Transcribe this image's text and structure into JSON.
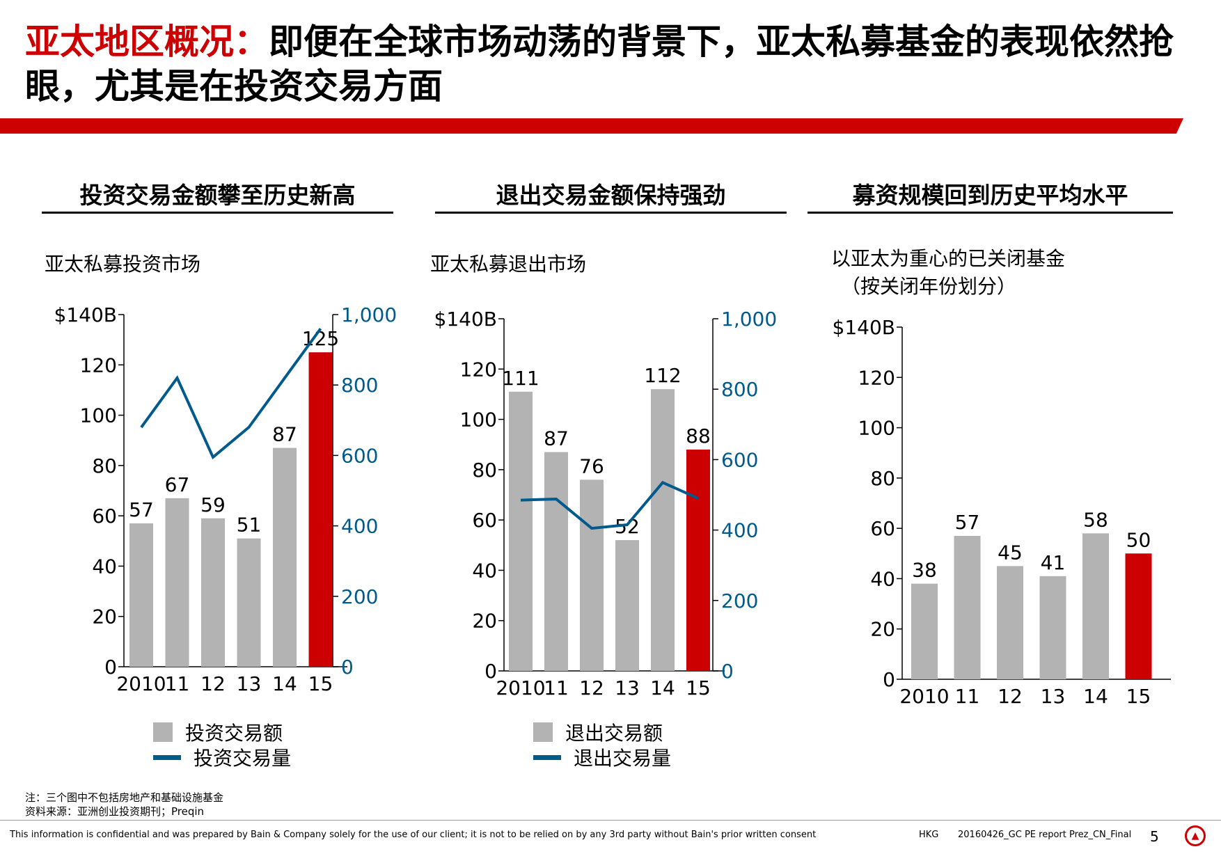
{
  "header": {
    "title_highlight": "亚太地区概况：",
    "title_rest": "即便在全球市场动荡的背景下，亚太私募基金的表现依然抢眼，尤其是在投资交易方面"
  },
  "panels": [
    {
      "title": "投资交易金额攀至历史新高",
      "subtitle": "亚太私募投资市场"
    },
    {
      "title": "退出交易金额保持强劲",
      "subtitle": "亚太私募退出市场"
    },
    {
      "title": "募资规模回到历史平均水平",
      "subtitle_line1": "以亚太为重心的已关闭基金",
      "subtitle_line2": "（按关闭年份划分）"
    }
  ],
  "legends": {
    "investment": {
      "bar": "投资交易额",
      "line": "投资交易量"
    },
    "exit": {
      "bar": "退出交易额",
      "line": "退出交易量"
    }
  },
  "notes": {
    "note": "注：三个图中不包括房地产和基础设施基金",
    "source": "资料来源：亚洲创业投资期刊；Preqin"
  },
  "footer": {
    "disclaimer": "This information is confidential and was prepared by Bain & Company solely for the use of our client; it is not to be relied on by any 3rd party without Bain's prior written consent",
    "region": "HKG",
    "doc": "20160426_GC PE report Prez_CN_Final",
    "page": "5"
  },
  "colors": {
    "accent": "#cc0000",
    "bar": "#b3b3b3",
    "line": "#005a8c"
  },
  "chart_data": [
    {
      "type": "bar",
      "categories": [
        "2010",
        "11",
        "12",
        "13",
        "14",
        "15"
      ],
      "values": [
        57,
        67,
        59,
        51,
        87,
        125
      ],
      "highlight_index": 5,
      "ylim": [
        0,
        140
      ],
      "yticks": [
        "0",
        "20",
        "40",
        "60",
        "80",
        "100",
        "120",
        "$140B"
      ],
      "y2lim": [
        0,
        1000
      ],
      "y2ticks": [
        "0",
        "200",
        "400",
        "600",
        "800",
        "1,000"
      ],
      "line_series": {
        "name": "投资交易量",
        "values": [
          680,
          820,
          595,
          680,
          820,
          960
        ]
      }
    },
    {
      "type": "bar",
      "categories": [
        "2010",
        "11",
        "12",
        "13",
        "14",
        "15"
      ],
      "values": [
        111,
        87,
        76,
        52,
        112,
        88
      ],
      "highlight_index": 5,
      "ylim": [
        0,
        140
      ],
      "yticks": [
        "0",
        "20",
        "40",
        "60",
        "80",
        "100",
        "120",
        "$140B"
      ],
      "y2lim": [
        0,
        1000
      ],
      "y2ticks": [
        "0",
        "200",
        "400",
        "600",
        "800",
        "1,000"
      ],
      "line_series": {
        "name": "退出交易量",
        "values": [
          485,
          488,
          405,
          415,
          535,
          490
        ]
      }
    },
    {
      "type": "bar",
      "categories": [
        "2010",
        "11",
        "12",
        "13",
        "14",
        "15"
      ],
      "values": [
        38,
        57,
        45,
        41,
        58,
        50
      ],
      "highlight_index": 5,
      "ylim": [
        0,
        140
      ],
      "yticks": [
        "0",
        "20",
        "40",
        "60",
        "80",
        "100",
        "120",
        "$140B"
      ]
    }
  ]
}
